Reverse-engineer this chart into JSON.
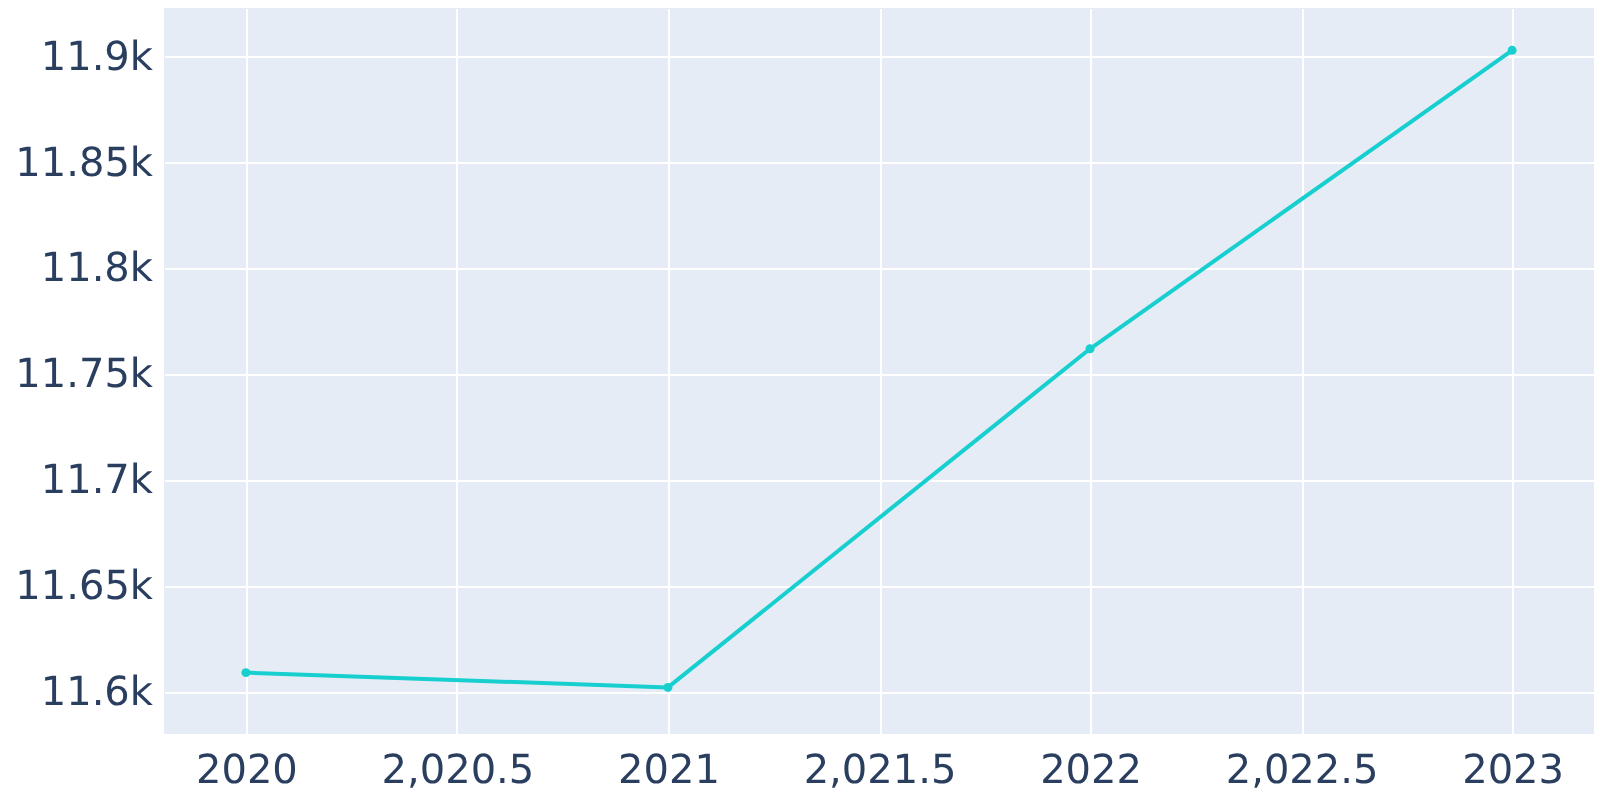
{
  "chart_data": {
    "type": "line",
    "x": [
      2020,
      2021,
      2022,
      2023
    ],
    "series": [
      {
        "color": "#17cfcf",
        "values": [
          11609,
          11602,
          11762,
          11903
        ]
      }
    ],
    "xlim": [
      2019.806,
      2023.194
    ],
    "ylim": [
      11580,
      11923
    ],
    "xticks": [
      {
        "value": 2020,
        "label": "2020"
      },
      {
        "value": 2020.5,
        "label": "2,020.5"
      },
      {
        "value": 2021,
        "label": "2021"
      },
      {
        "value": 2021.5,
        "label": "2,021.5"
      },
      {
        "value": 2022,
        "label": "2022"
      },
      {
        "value": 2022.5,
        "label": "2,022.5"
      },
      {
        "value": 2023,
        "label": "2023"
      }
    ],
    "yticks": [
      {
        "value": 11600,
        "label": "11.6k"
      },
      {
        "value": 11650,
        "label": "11.65k"
      },
      {
        "value": 11700,
        "label": "11.7k"
      },
      {
        "value": 11750,
        "label": "11.75k"
      },
      {
        "value": 11800,
        "label": "11.8k"
      },
      {
        "value": 11850,
        "label": "11.85k"
      },
      {
        "value": 11900,
        "label": "11.9k"
      }
    ],
    "grid": true,
    "marker": "circle",
    "line_style": "solid"
  }
}
